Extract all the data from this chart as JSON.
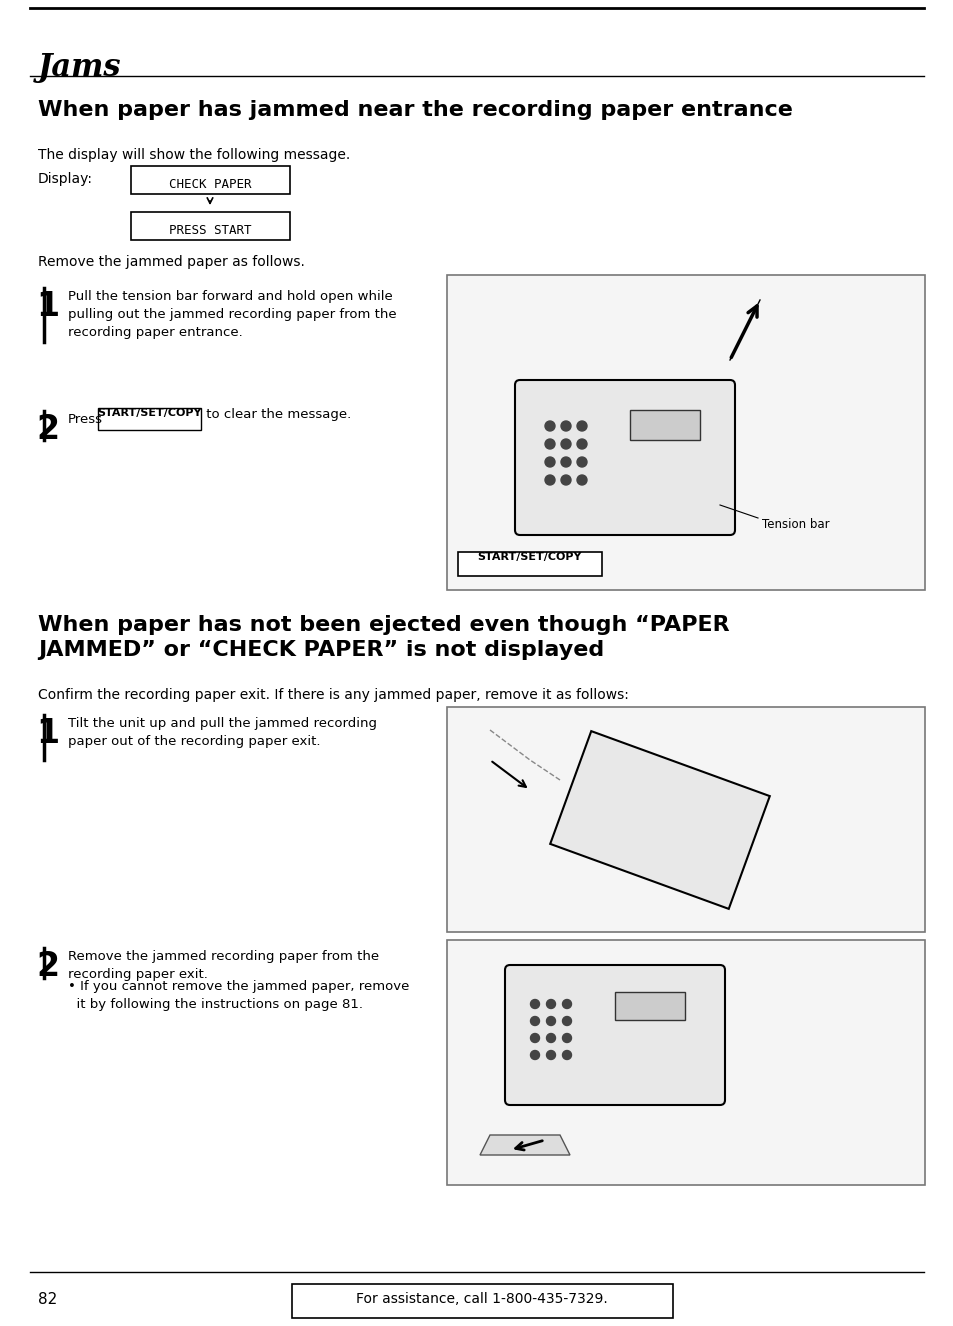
{
  "page_title": "Jams",
  "section1_title": "When paper has jammed near the recording paper entrance",
  "section1_intro": "The display will show the following message.",
  "display_label": "Display:",
  "display_box1": "CHECK PAPER",
  "display_box2": "PRESS START",
  "remove_text": "Remove the jammed paper as follows.",
  "step1_num": "1",
  "step1_text": "Pull the tension bar forward and hold open while\npulling out the jammed recording paper from the\nrecording paper entrance.",
  "step2_num": "2",
  "step2_text": "Press",
  "step2_button": "START/SET/COPY",
  "step2_text2": " to clear the message.",
  "tension_bar_label": "Tension bar",
  "start_set_copy_label": "START/SET/COPY",
  "section2_title": "When paper has not been ejected even though “PAPER\nJAMMED” or “CHECK PAPER” is not displayed",
  "section2_intro": "Confirm the recording paper exit. If there is any jammed paper, remove it as follows:",
  "step3_num": "1",
  "step3_text": "Tilt the unit up and pull the jammed recording\npaper out of the recording paper exit.",
  "step4_num": "2",
  "step4_text": "Remove the jammed recording paper from the\nrecording paper exit.",
  "step4_bullet": "• If you cannot remove the jammed paper, remove\n  it by following the instructions on page 81.",
  "page_num": "82",
  "footer_text": "For assistance, call 1-800-435-7329.",
  "bg_color": "#ffffff",
  "text_color": "#000000",
  "line_color": "#000000"
}
